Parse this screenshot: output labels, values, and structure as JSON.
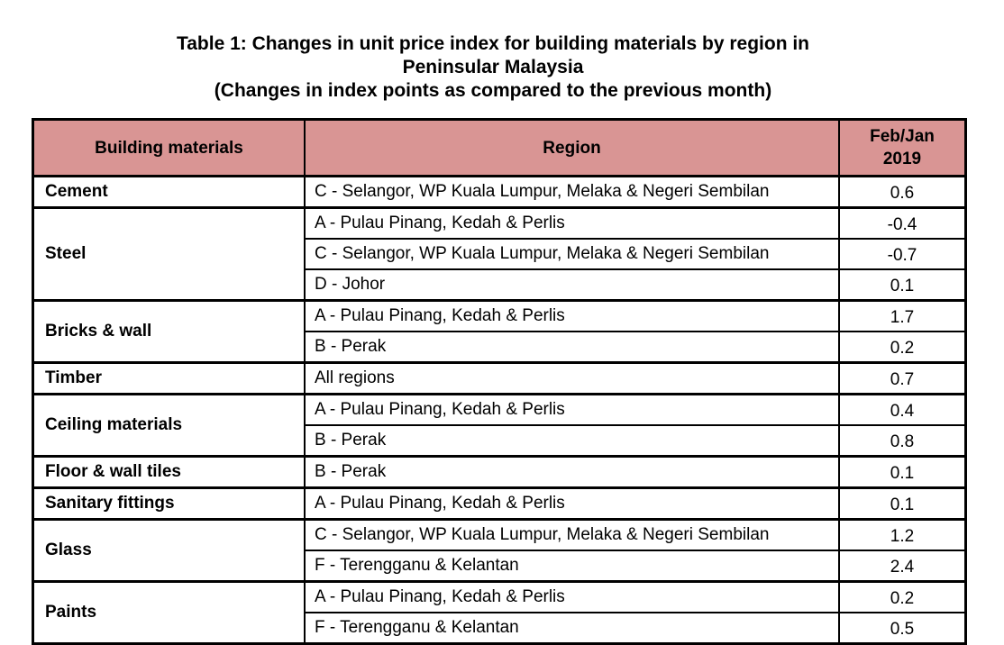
{
  "title": {
    "line1": "Table 1: Changes in unit price index for building materials by region in",
    "line2": "Peninsular Malaysia",
    "line3": "(Changes in index points as compared to the previous month)"
  },
  "header": {
    "materials": "Building materials",
    "region": "Region",
    "period_line1": "Feb/Jan",
    "period_line2": "2019"
  },
  "colors": {
    "header_bg": "#d99594"
  },
  "groups": [
    {
      "material": "Cement",
      "rows": [
        {
          "region": "C - Selangor, WP Kuala Lumpur, Melaka & Negeri Sembilan",
          "value": "0.6"
        }
      ]
    },
    {
      "material": "Steel",
      "rows": [
        {
          "region": "A - Pulau Pinang, Kedah & Perlis",
          "value": "-0.4"
        },
        {
          "region": "C - Selangor, WP Kuala Lumpur, Melaka & Negeri Sembilan",
          "value": "-0.7"
        },
        {
          "region": "D - Johor",
          "value": "0.1"
        }
      ]
    },
    {
      "material": "Bricks & wall",
      "rows": [
        {
          "region": "A - Pulau Pinang, Kedah & Perlis",
          "value": "1.7"
        },
        {
          "region": "B - Perak",
          "value": "0.2"
        }
      ]
    },
    {
      "material": "Timber",
      "rows": [
        {
          "region": "All regions",
          "value": "0.7"
        }
      ]
    },
    {
      "material": "Ceiling materials",
      "rows": [
        {
          "region": "A - Pulau Pinang, Kedah & Perlis",
          "value": "0.4"
        },
        {
          "region": "B - Perak",
          "value": "0.8"
        }
      ]
    },
    {
      "material": "Floor & wall tiles",
      "rows": [
        {
          "region": "B - Perak",
          "value": "0.1"
        }
      ]
    },
    {
      "material": "Sanitary fittings",
      "rows": [
        {
          "region": "A - Pulau Pinang, Kedah & Perlis",
          "value": "0.1"
        }
      ]
    },
    {
      "material": "Glass",
      "rows": [
        {
          "region": "C - Selangor, WP Kuala Lumpur, Melaka & Negeri Sembilan",
          "value": "1.2"
        },
        {
          "region": "F - Terengganu & Kelantan",
          "value": "2.4"
        }
      ]
    },
    {
      "material": "Paints",
      "rows": [
        {
          "region": "A - Pulau Pinang, Kedah & Perlis",
          "value": "0.2"
        },
        {
          "region": "F - Terengganu & Kelantan",
          "value": "0.5"
        }
      ]
    }
  ]
}
